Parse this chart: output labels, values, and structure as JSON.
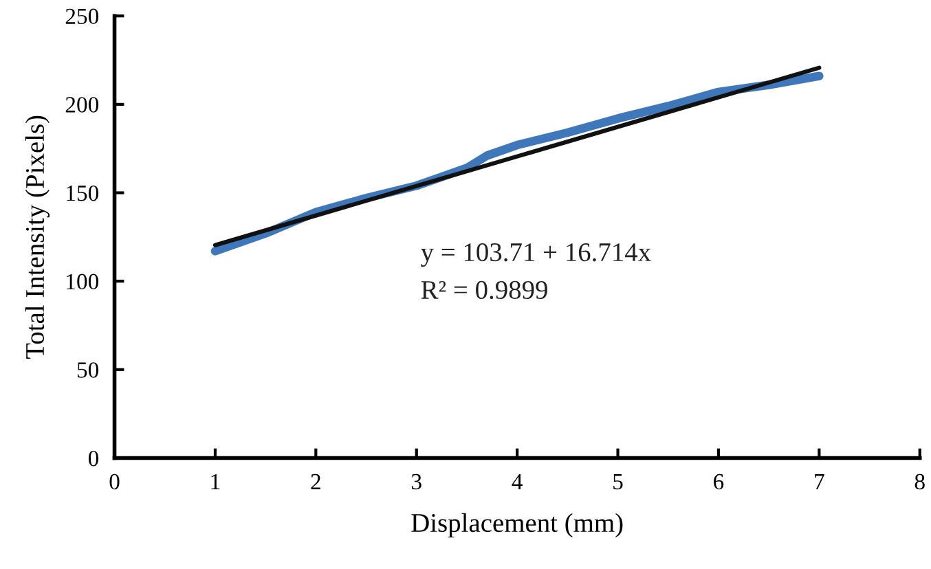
{
  "chart_data": {
    "type": "line",
    "xlabel": "Displacement (mm)",
    "ylabel": "Total Intensity (Pixels)",
    "xlim": [
      0,
      8
    ],
    "xticks": [
      0,
      1,
      2,
      3,
      4,
      5,
      6,
      7,
      8
    ],
    "ylim": [
      0,
      250
    ],
    "yticks": [
      0,
      50,
      100,
      150,
      200,
      250
    ],
    "grid": false,
    "legend": false,
    "marker": "none",
    "line_style": "solid",
    "series": [
      {
        "color": "#3f77bb",
        "x": [
          1,
          1.5,
          2,
          2.5,
          3,
          3.5,
          3.7,
          4,
          4.5,
          5,
          5.5,
          6,
          6.5,
          7
        ],
        "values": [
          117,
          127,
          139,
          147,
          154,
          164,
          171,
          177,
          184,
          192,
          199,
          207,
          211,
          216
        ]
      },
      {
        "color": "#111111",
        "x": [
          1,
          7
        ],
        "values": [
          120.4,
          220.7
        ]
      }
    ],
    "annotations": [
      "y = 103.71 + 16.714x",
      "R² = 0.9899"
    ]
  }
}
